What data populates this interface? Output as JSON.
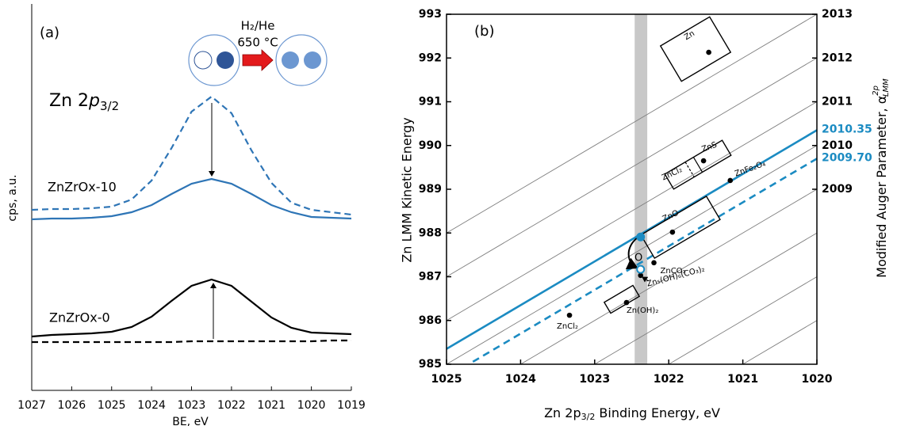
{
  "chart_data": [
    {
      "type": "line",
      "panel_label": "(a)",
      "title": [
        "Zn 2",
        "p",
        "3/2"
      ],
      "xlabel": "BE, eV",
      "ylabel": "cps, a.u.",
      "annotations": [
        "H₂/He",
        "650 °C",
        "ZnZrOx-10",
        "ZnZrOx-0"
      ],
      "x": [
        1027,
        1026.5,
        1026,
        1025.5,
        1025,
        1024.5,
        1024,
        1023.5,
        1023,
        1022.5,
        1022,
        1021.5,
        1021,
        1020.5,
        1020,
        1019.5,
        1019
      ],
      "xlim": [
        1027,
        1019
      ],
      "xticks": [
        1027,
        1026,
        1025,
        1024,
        1023,
        1022,
        1021,
        1020,
        1019
      ],
      "ylim": [
        0,
        488
      ],
      "series": [
        {
          "color": "#2e75b6",
          "style": "dashed",
          "values": [
            228,
            229,
            229,
            230,
            232,
            241,
            265,
            306,
            352,
            371,
            350,
            303,
            262,
            237,
            228,
            225,
            222
          ]
        },
        {
          "color": "#2e75b6",
          "style": "solid",
          "values": [
            216,
            217,
            217,
            218,
            220,
            225,
            234,
            248,
            261,
            267,
            261,
            248,
            234,
            225,
            219,
            218,
            217
          ]
        },
        {
          "color": "#000000",
          "style": "solid",
          "values": [
            68,
            70,
            71,
            72,
            74,
            80,
            93,
            113,
            132,
            140,
            132,
            112,
            92,
            79,
            73,
            72,
            71
          ]
        },
        {
          "color": "#000000",
          "style": "dashed",
          "values": [
            61,
            61,
            61,
            61,
            61,
            61,
            61,
            61,
            62,
            62,
            62,
            62,
            62,
            62,
            62,
            63,
            63
          ]
        }
      ]
    },
    {
      "type": "scatter",
      "panel_label": "(b)",
      "xlabel": [
        "Zn 2p",
        "3/2",
        " Binding Energy, eV"
      ],
      "ylabel": "Zn LMM Kinetic Energy",
      "y2label": [
        "Modified Auger Parameter, α",
        "2p",
        "LMM"
      ],
      "xlim": [
        1025,
        1020
      ],
      "xticks": [
        1025,
        1024,
        1023,
        1022,
        1021,
        1020
      ],
      "ylim": [
        985,
        993
      ],
      "yticks": [
        985,
        986,
        987,
        988,
        989,
        990,
        991,
        992,
        993
      ],
      "y2lim": [
        2005,
        2013
      ],
      "y2ticks": [
        2009,
        2010,
        2011,
        2012,
        2013
      ],
      "band": [
        1022.46,
        1022.29
      ],
      "reference_lines": {
        "color": "#7f7f7f",
        "values": [
          2006,
          2007,
          2008,
          2009,
          2010,
          2011,
          2012,
          2013
        ]
      },
      "auger_lines": {
        "color": "#1b8bc2",
        "values": [
          2010.35,
          2009.7
        ],
        "value_labels": [
          "2010.35",
          "2009.70"
        ],
        "styles": [
          "solid",
          "dashed"
        ]
      },
      "points": {
        "color": "#000000",
        "labels": [
          "Zn",
          "ZnS",
          "ZnFe₂O₄",
          "ZnO",
          "ZnCO₃",
          "Zn₅(OH)₆(CO₃)₂",
          "Zn(OH)₂",
          "ZnCl₂"
        ],
        "x": [
          1021.46,
          1021.53,
          1021.17,
          1021.95,
          1022.2,
          1022.38,
          1022.57,
          1023.34
        ],
        "y": [
          992.13,
          989.65,
          989.2,
          988.02,
          987.32,
          987.03,
          986.41,
          986.12
        ]
      },
      "samples": {
        "color": "#1b8bc2",
        "x": [
          1022.38,
          1022.38
        ],
        "y": [
          987.91,
          987.17
        ],
        "fills": [
          "filled",
          "open"
        ]
      },
      "annotations": [
        "ZnCl₂",
        "O"
      ]
    }
  ]
}
